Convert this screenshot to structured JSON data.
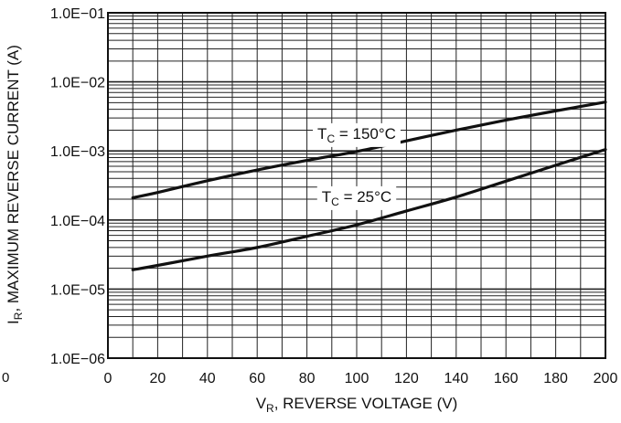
{
  "chart_data": {
    "type": "line",
    "title": "",
    "xlabel": {
      "main": "V",
      "sub": "R",
      "rest": ", REVERSE VOLTAGE (V)"
    },
    "ylabel": {
      "main": "I",
      "sub": "R",
      "rest": ", MAXIMUM REVERSE CURRENT (A)"
    },
    "xlim": [
      0,
      200
    ],
    "ylim": [
      1e-06,
      0.1
    ],
    "yscale": "log",
    "grid": true,
    "x_ticks": [
      0,
      20,
      40,
      60,
      80,
      100,
      120,
      140,
      160,
      180,
      200
    ],
    "x_tick_labels": [
      "0",
      "20",
      "40",
      "60",
      "80",
      "100",
      "120",
      "140",
      "160",
      "180",
      "200"
    ],
    "y_ticks": [
      1e-06,
      1e-05,
      0.0001,
      0.001,
      0.01,
      0.1
    ],
    "y_tick_labels": [
      "1.0E−06",
      "1.0E−05",
      "1.0E−04",
      "1.0E−03",
      "1.0E−02",
      "1.0E−01"
    ],
    "x_axis_stray_label": "0",
    "series": [
      {
        "name": "T_C = 150°C",
        "label": {
          "main": "T",
          "sub": "C",
          "rest": " = 150°C"
        },
        "x": [
          10,
          20,
          40,
          60,
          80,
          100,
          120,
          140,
          160,
          180,
          200
        ],
        "y": [
          0.00021,
          0.00025,
          0.00037,
          0.00053,
          0.00073,
          0.00098,
          0.0014,
          0.002,
          0.0028,
          0.0038,
          0.0051
        ]
      },
      {
        "name": "T_C = 25°C",
        "label": {
          "main": "T",
          "sub": "C",
          "rest": " = 25°C"
        },
        "x": [
          10,
          20,
          40,
          60,
          80,
          100,
          120,
          140,
          160,
          180,
          200
        ],
        "y": [
          1.9e-05,
          2.2e-05,
          3e-05,
          4e-05,
          5.8e-05,
          8.5e-05,
          0.000135,
          0.000215,
          0.000365,
          0.00062,
          0.00105
        ]
      }
    ],
    "colors": {
      "line": "#111111",
      "grid": "#222222",
      "background": "#ffffff"
    }
  }
}
